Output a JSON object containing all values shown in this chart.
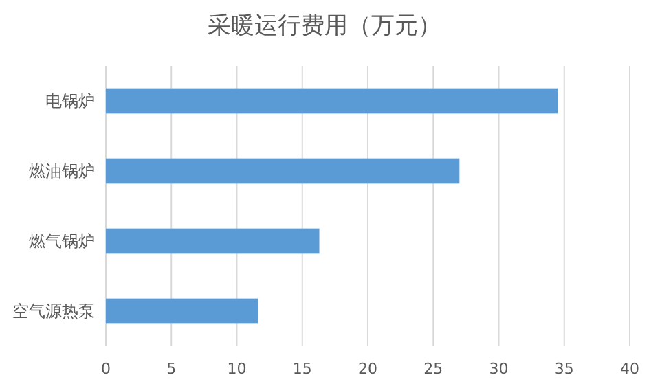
{
  "chart_data": {
    "type": "bar",
    "orientation": "horizontal",
    "title": "采暖运行费用（万元）",
    "categories": [
      "电锅炉",
      "燃油锅炉",
      "燃气锅炉",
      "空气源热泵"
    ],
    "series": [
      {
        "color": "#5b9bd5",
        "values": [
          34.5,
          27.0,
          16.3,
          11.6
        ]
      }
    ],
    "xlim": [
      0,
      40
    ],
    "xticks": [
      0,
      5,
      10,
      15,
      20,
      25,
      30,
      35,
      40
    ],
    "grid": "x"
  }
}
